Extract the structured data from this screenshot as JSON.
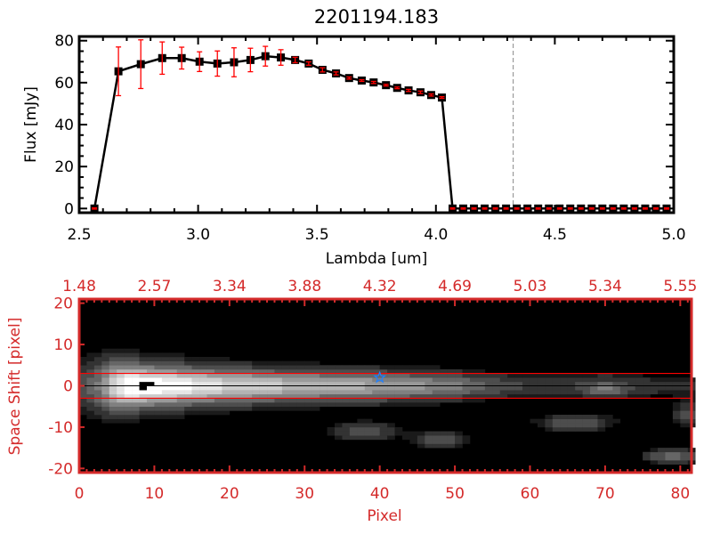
{
  "chart_data": [
    {
      "type": "line",
      "title": "2201194.183",
      "xlabel": "Lambda [um]",
      "ylabel": "Flux [mJy]",
      "xlim": [
        2.5,
        5.0
      ],
      "ylim": [
        -2,
        82
      ],
      "xticks": [
        "2.5",
        "3.0",
        "3.5",
        "4.0",
        "4.5",
        "5.0"
      ],
      "yticks": [
        "0",
        "20",
        "40",
        "60",
        "80"
      ],
      "marker": "square",
      "line_color": "#000000",
      "errorbar_color": "#ff0000",
      "reference_line": {
        "x": 4.325,
        "style": "dashed",
        "color": "#888888"
      },
      "x": [
        2.564,
        2.665,
        2.759,
        2.849,
        2.931,
        3.006,
        3.081,
        3.151,
        3.22,
        3.283,
        3.348,
        3.408,
        3.465,
        3.523,
        3.58,
        3.635,
        3.688,
        3.738,
        3.79,
        3.837,
        3.885,
        3.935,
        3.98,
        4.025,
        4.07,
        4.115,
        4.16,
        4.205,
        4.25,
        4.295,
        4.34,
        4.385,
        4.43,
        4.475,
        4.52,
        4.565,
        4.61,
        4.655,
        4.7,
        4.745,
        4.79,
        4.835,
        4.88,
        4.925,
        4.97
      ],
      "y": [
        0,
        65.4,
        68.8,
        71.7,
        71.7,
        70.0,
        69.1,
        69.7,
        70.8,
        72.6,
        72.0,
        70.8,
        69.1,
        66.1,
        64.4,
        62.2,
        61.0,
        60.1,
        58.8,
        57.5,
        56.3,
        55.4,
        54.1,
        52.9,
        0,
        0,
        0,
        0,
        0,
        0,
        0,
        0,
        0,
        0,
        0,
        0,
        0,
        0,
        0,
        0,
        0,
        0,
        0,
        0,
        0
      ],
      "yerr": [
        0.3,
        11.6,
        11.6,
        7.7,
        5.2,
        4.7,
        6.0,
        6.9,
        5.6,
        4.7,
        3.7,
        1.3,
        0.8,
        1.0,
        0.7,
        0.5,
        0.4,
        0.5,
        0.4,
        0.4,
        0.5,
        0.6,
        0.5,
        0.4,
        0.3,
        0.3,
        0.3,
        0.3,
        0.3,
        0.3,
        0.3,
        0.3,
        0.3,
        0.3,
        0.3,
        0.3,
        0.3,
        0.3,
        0.3,
        0.3,
        0.3,
        0.3,
        0.3,
        0.3,
        0.3
      ]
    },
    {
      "type": "heatmap",
      "xlabel": "Pixel",
      "ylabel": "Space Shift [pixel]",
      "xlim": [
        0,
        81.5
      ],
      "ylim": [
        -21,
        21
      ],
      "xticks": [
        "0",
        "10",
        "20",
        "30",
        "40",
        "50",
        "60",
        "70",
        "80"
      ],
      "yticks": [
        "-20",
        "-10",
        "0",
        "10",
        "20"
      ],
      "top_axis_ticks": [
        "1.48",
        "2.57",
        "3.34",
        "3.88",
        "4.32",
        "4.69",
        "5.03",
        "5.34",
        "5.55"
      ],
      "axis_color": "#d42a2a",
      "colormap": "grayscale",
      "aperture_lines": {
        "upper": 3,
        "lower": -3,
        "center": 0
      },
      "marker_star": {
        "x": 40,
        "y": 2,
        "color": "#2080ff"
      },
      "trace_profile": {
        "columns": [
          0,
          3,
          5,
          7,
          10,
          15,
          20,
          30,
          40,
          50,
          55,
          60,
          65,
          70,
          75,
          81
        ],
        "amplitude": [
          0.25,
          0.45,
          0.8,
          1.0,
          0.95,
          0.85,
          0.75,
          0.65,
          0.58,
          0.45,
          0.3,
          0.22,
          0.2,
          0.28,
          0.18,
          0.15
        ],
        "width": [
          4,
          4.5,
          4,
          3.5,
          3.2,
          3,
          2.8,
          2.5,
          2.4,
          2.2,
          2,
          2,
          2,
          2,
          2,
          2
        ]
      },
      "blobs": [
        {
          "x": 38,
          "y": -11,
          "amp": 0.35,
          "sx": 3,
          "sy": 1.5
        },
        {
          "x": 48,
          "y": -13,
          "amp": 0.32,
          "sx": 2.5,
          "sy": 1.4
        },
        {
          "x": 66,
          "y": -9,
          "amp": 0.35,
          "sx": 3.5,
          "sy": 1.5
        },
        {
          "x": 79,
          "y": -17,
          "amp": 0.45,
          "sx": 2.5,
          "sy": 1.3
        },
        {
          "x": 81,
          "y": -7,
          "amp": 0.3,
          "sx": 1.5,
          "sy": 2
        },
        {
          "x": 70,
          "y": -1,
          "amp": 0.2,
          "sx": 2,
          "sy": 1
        }
      ],
      "masked_pixels": [
        [
          8,
          0
        ],
        [
          9,
          0
        ],
        [
          8,
          -1
        ],
        [
          10,
          -0.5
        ]
      ]
    }
  ]
}
